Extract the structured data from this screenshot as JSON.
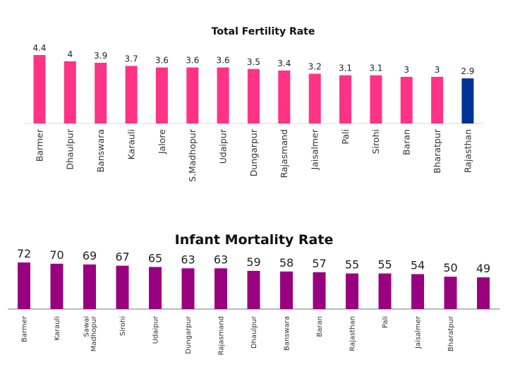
{
  "chart_data": [
    {
      "type": "bar",
      "title": "Total Fertility Rate",
      "xlabel": "",
      "ylabel": "",
      "ylim": [
        0,
        4.4
      ],
      "grid": false,
      "legend": "none",
      "categories": [
        "Barmer",
        "Dhaulpur",
        "Banswara",
        "Karauli",
        "Jalore",
        "S.Madhopur",
        "Udaipur",
        "Dungarpur",
        "Rajasmand",
        "Jaisalmer",
        "Pali",
        "Sirohi",
        "Baran",
        "Bharatpur",
        "Rajasthan"
      ],
      "values": [
        4.4,
        4,
        3.9,
        3.7,
        3.6,
        3.6,
        3.6,
        3.5,
        3.4,
        3.2,
        3.1,
        3.1,
        3,
        3,
        2.9
      ],
      "value_labels": [
        "4.4",
        "4",
        "3.9",
        "3.7",
        "3.6",
        "3.6",
        "3.6",
        "3.5",
        "3.4",
        "3.2",
        "3.1",
        "3.1",
        "3",
        "3",
        "2.9"
      ],
      "colors": {
        "default": "#FF3385",
        "highlight": "#003399"
      },
      "highlight_category": "Rajasthan"
    },
    {
      "type": "bar",
      "title": "Infant Mortality Rate",
      "xlabel": "",
      "ylabel": "",
      "ylim": [
        0,
        72
      ],
      "grid": false,
      "legend": "none",
      "categories": [
        "Barmer",
        "Karauli",
        "Sawai Madhopur",
        "Sirohi",
        "Udaipur",
        "Dungarpur",
        "Rajasmand",
        "Dhaulpur",
        "Banswara",
        "Baran",
        "Rajasthan",
        "Pali",
        "Jaisalmer",
        "Bharatpur",
        ""
      ],
      "values": [
        72,
        70,
        69,
        67,
        65,
        63,
        63,
        59,
        58,
        57,
        55,
        55,
        54,
        50,
        49
      ],
      "value_labels": [
        "72",
        "70",
        "69",
        "67",
        "65",
        "63",
        "63",
        "59",
        "58",
        "57",
        "55",
        "55",
        "54",
        "50",
        "49"
      ],
      "colors": {
        "default": "#990080"
      }
    }
  ]
}
